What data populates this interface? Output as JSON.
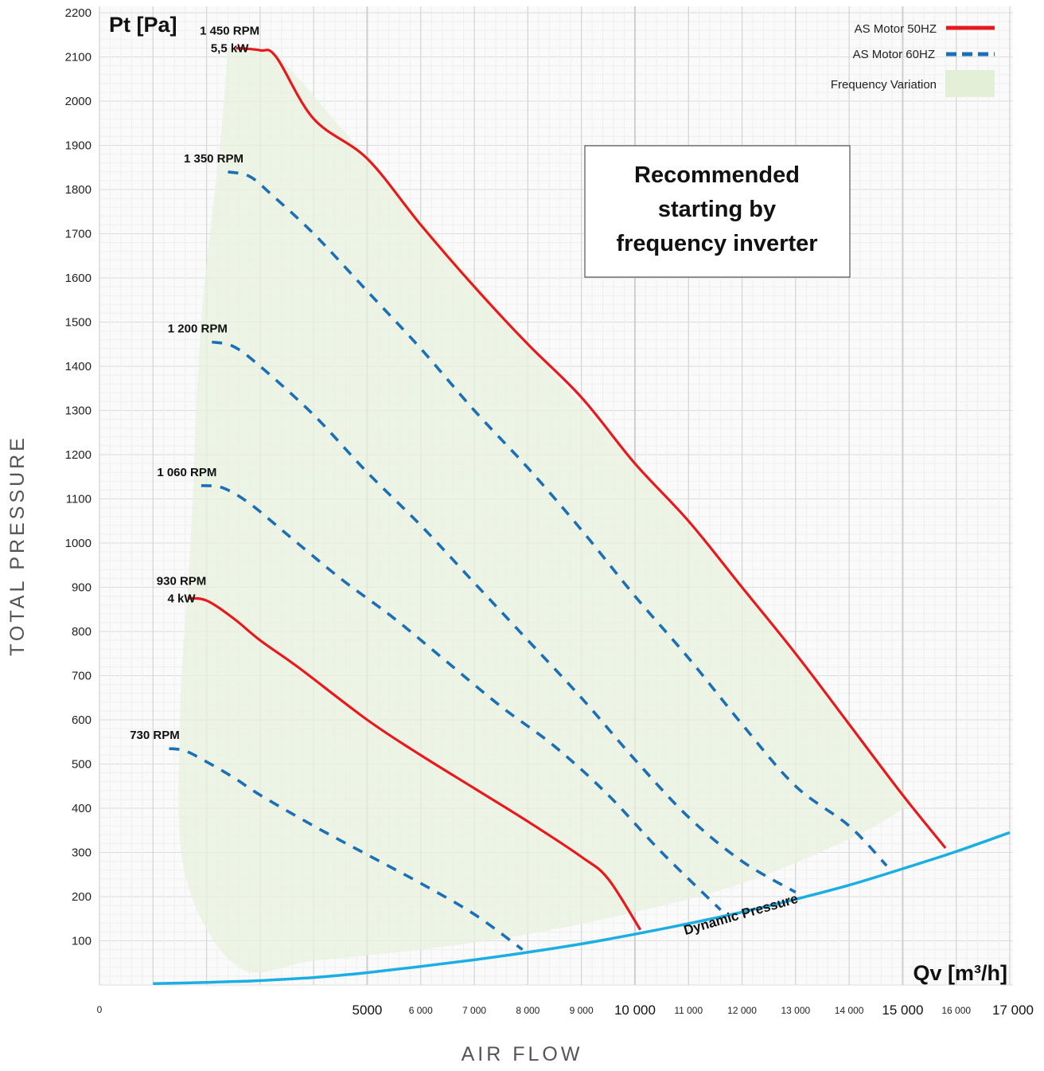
{
  "chart_data": {
    "type": "line",
    "title": "",
    "xlabel": "AIR FLOW",
    "ylabel": "TOTAL PRESSURE",
    "x_unit": "Qv [m³/h]",
    "y_unit": "Pt [Pa]",
    "xlim": [
      0,
      17000
    ],
    "ylim": [
      0,
      2200
    ],
    "grid": true,
    "y_ticks": [
      2200,
      2100,
      2000,
      1900,
      1800,
      1700,
      1600,
      1500,
      1400,
      1300,
      1200,
      1100,
      1000,
      900,
      800,
      700,
      600,
      500,
      400,
      300,
      200,
      100
    ],
    "x_tick_origin": "0",
    "x_ticks": [
      {
        "value": 5000,
        "label": "5000",
        "major": true
      },
      {
        "value": 6000,
        "label": "6 000",
        "major": false
      },
      {
        "value": 7000,
        "label": "7 000",
        "major": false
      },
      {
        "value": 8000,
        "label": "8 000",
        "major": false
      },
      {
        "value": 9000,
        "label": "9 000",
        "major": false
      },
      {
        "value": 10000,
        "label": "10 000",
        "major": true
      },
      {
        "value": 11000,
        "label": "11 000",
        "major": false
      },
      {
        "value": 12000,
        "label": "12 000",
        "major": false
      },
      {
        "value": 13000,
        "label": "13 000",
        "major": false
      },
      {
        "value": 14000,
        "label": "14 000",
        "major": false
      },
      {
        "value": 15000,
        "label": "15 000",
        "major": true
      },
      {
        "value": 16000,
        "label": "16 000",
        "major": false
      },
      {
        "value": 17000,
        "label": "17 000",
        "major": true
      }
    ],
    "legend": {
      "placement": "top-right",
      "entries": [
        {
          "label": "AS Motor  50HZ",
          "style": "solid",
          "color": "#e8191d"
        },
        {
          "label": "AS Motor  60HZ",
          "style": "dashed",
          "color": "#1a6fb5"
        },
        {
          "label": "Frequency Variation",
          "style": "area",
          "color": "#e9f2df"
        }
      ]
    },
    "series": [
      {
        "name": "1 450 RPM",
        "label_lines": [
          "1 450 RPM",
          "5,5 kW"
        ],
        "style": "solid",
        "x": [
          2550,
          3000,
          3300,
          4000,
          5000,
          6000,
          7000,
          8000,
          9000,
          10000,
          11000,
          12000,
          13000,
          14000,
          15000,
          15800
        ],
        "y": [
          2120,
          2115,
          2100,
          1960,
          1870,
          1720,
          1580,
          1450,
          1330,
          1180,
          1050,
          900,
          750,
          590,
          430,
          310
        ]
      },
      {
        "name": "1 350 RPM",
        "style": "dashed",
        "x": [
          2400,
          2800,
          3200,
          4000,
          5000,
          6000,
          7000,
          8000,
          9000,
          10000,
          11000,
          12000,
          13000,
          14000,
          14700
        ],
        "y": [
          1840,
          1830,
          1790,
          1700,
          1570,
          1440,
          1300,
          1170,
          1030,
          880,
          740,
          590,
          450,
          360,
          270
        ]
      },
      {
        "name": "1 200 RPM",
        "style": "dashed",
        "x": [
          2100,
          2500,
          3000,
          4000,
          5000,
          6000,
          7000,
          8000,
          9000,
          10000,
          11000,
          12000,
          13000
        ],
        "y": [
          1455,
          1445,
          1400,
          1290,
          1160,
          1040,
          910,
          780,
          650,
          510,
          380,
          280,
          210
        ]
      },
      {
        "name": "1 060 RPM",
        "style": "dashed",
        "x": [
          1900,
          2300,
          2800,
          3500,
          4500,
          5500,
          6500,
          7500,
          8500,
          9500,
          10500,
          11600
        ],
        "y": [
          1130,
          1125,
          1090,
          1020,
          920,
          830,
          730,
          630,
          540,
          430,
          300,
          170
        ]
      },
      {
        "name": "930 RPM",
        "label_lines": [
          "930 RPM",
          "4 kW"
        ],
        "style": "solid",
        "x": [
          1650,
          2000,
          2500,
          3000,
          3700,
          5000,
          6000,
          7000,
          8000,
          9000,
          9500,
          10100
        ],
        "y": [
          875,
          870,
          830,
          780,
          720,
          600,
          520,
          445,
          370,
          290,
          240,
          125
        ]
      },
      {
        "name": "730 RPM",
        "style": "dashed",
        "x": [
          1300,
          1600,
          2000,
          2500,
          3000,
          4000,
          5000,
          6000,
          7000,
          7900
        ],
        "y": [
          535,
          530,
          505,
          470,
          430,
          360,
          295,
          230,
          160,
          80
        ]
      }
    ],
    "dynamic_pressure": {
      "label": "Dynamic Pressure",
      "x": [
        1000,
        2000,
        3000,
        4000,
        5000,
        6000,
        7000,
        8000,
        9000,
        10000,
        11000,
        12000,
        13000,
        14000,
        15000,
        16000,
        17000
      ],
      "y": [
        3,
        6,
        10,
        17,
        28,
        42,
        57,
        74,
        93,
        115,
        139,
        165,
        194,
        226,
        263,
        302,
        345
      ]
    },
    "frequency_variation_area": {
      "upper": [
        [
          2400,
          2120
        ],
        [
          3300,
          2100
        ],
        [
          5000,
          1870
        ],
        [
          8000,
          1450
        ],
        [
          10000,
          1180
        ],
        [
          12000,
          900
        ],
        [
          13000,
          750
        ],
        [
          14000,
          590
        ],
        [
          15000,
          430
        ]
      ],
      "lower": [
        [
          15000,
          400
        ],
        [
          14000,
          330
        ],
        [
          12000,
          230
        ],
        [
          10000,
          165
        ],
        [
          8000,
          115
        ],
        [
          6000,
          80
        ],
        [
          4000,
          55
        ],
        [
          2600,
          40
        ],
        [
          1600,
          250
        ],
        [
          1500,
          600
        ],
        [
          1700,
          1000
        ],
        [
          1900,
          1500
        ],
        [
          2250,
          1900
        ]
      ]
    },
    "annotation": {
      "lines": [
        "Recommended",
        "starting by",
        "frequency inverter"
      ]
    }
  }
}
